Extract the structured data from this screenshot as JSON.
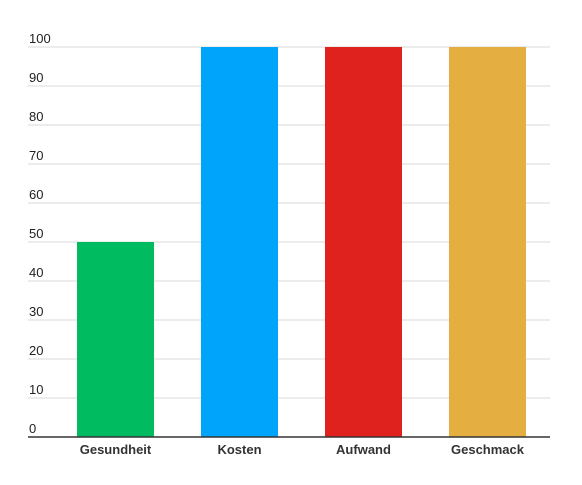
{
  "chart_data": {
    "type": "bar",
    "title": "",
    "xlabel": "",
    "ylabel": "",
    "categories": [
      "Gesundheit",
      "Kosten",
      "Aufwand",
      "Geschmack"
    ],
    "values": [
      50,
      100,
      100,
      100
    ],
    "colors": [
      "#00bb5f",
      "#00a5fb",
      "#e0221e",
      "#e4ae40"
    ],
    "ylim": [
      0,
      100
    ],
    "yticks": [
      0,
      10,
      20,
      30,
      40,
      50,
      60,
      70,
      80,
      90,
      100
    ],
    "grid": true,
    "legend": "none"
  }
}
